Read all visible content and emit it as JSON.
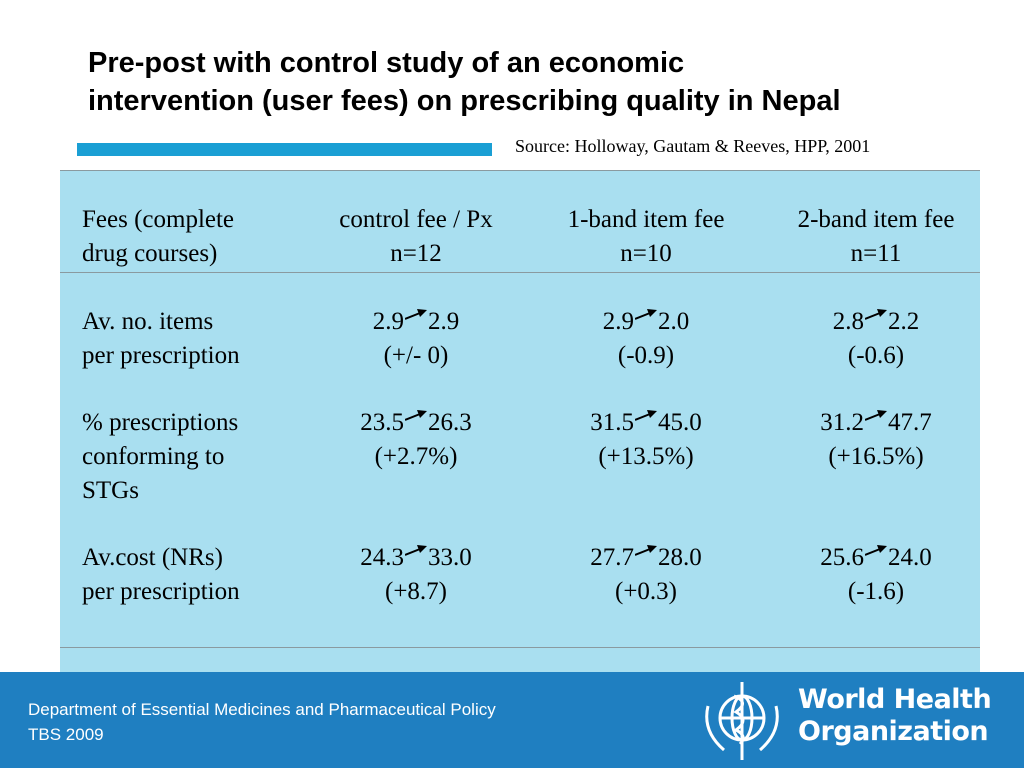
{
  "title": [
    "Pre-post with control study of an economic",
    "intervention (user fees) on prescribing quality in Nepal"
  ],
  "source": "Source: Holloway, Gautam & Reeves, HPP, 2001",
  "table": {
    "header": {
      "label": [
        "Fees (complete",
        "drug courses)"
      ],
      "columns": [
        {
          "name": "control fee / Px",
          "n": "n=12"
        },
        {
          "name": "1-band item fee",
          "n": "n=10"
        },
        {
          "name": "2-band item fee",
          "n": "n=11"
        }
      ]
    },
    "rows": [
      {
        "label": [
          "Av. no. items",
          "per prescription"
        ],
        "cells": [
          {
            "before": "2.9",
            "after": "2.9",
            "change": "(+/- 0)"
          },
          {
            "before": "2.9",
            "after": "2.0",
            "change": "(-0.9)"
          },
          {
            "before": "2.8",
            "after": "2.2",
            "change": "(-0.6)"
          }
        ]
      },
      {
        "label": [
          "% prescriptions",
          "conforming to",
          "STGs"
        ],
        "cells": [
          {
            "before": "23.5",
            "after": "26.3",
            "change": "(+2.7%)"
          },
          {
            "before": "31.5",
            "after": "45.0",
            "change": "(+13.5%)"
          },
          {
            "before": "31.2",
            "after": "47.7",
            "change": "(+16.5%)"
          }
        ]
      },
      {
        "label": [
          "Av.cost (NRs)",
          "per prescription"
        ],
        "cells": [
          {
            "before": "24.3",
            "after": "33.0",
            "change": "(+8.7)"
          },
          {
            "before": "27.7",
            "after": "28.0",
            "change": "(+0.3)"
          },
          {
            "before": "25.6",
            "after": "24.0",
            "change": "(-1.6)"
          }
        ]
      }
    ]
  },
  "footer": [
    "Department of Essential Medicines and Pharmaceutical Policy",
    "TBS 2009"
  ],
  "logo": [
    "World Health",
    "Organization"
  ]
}
